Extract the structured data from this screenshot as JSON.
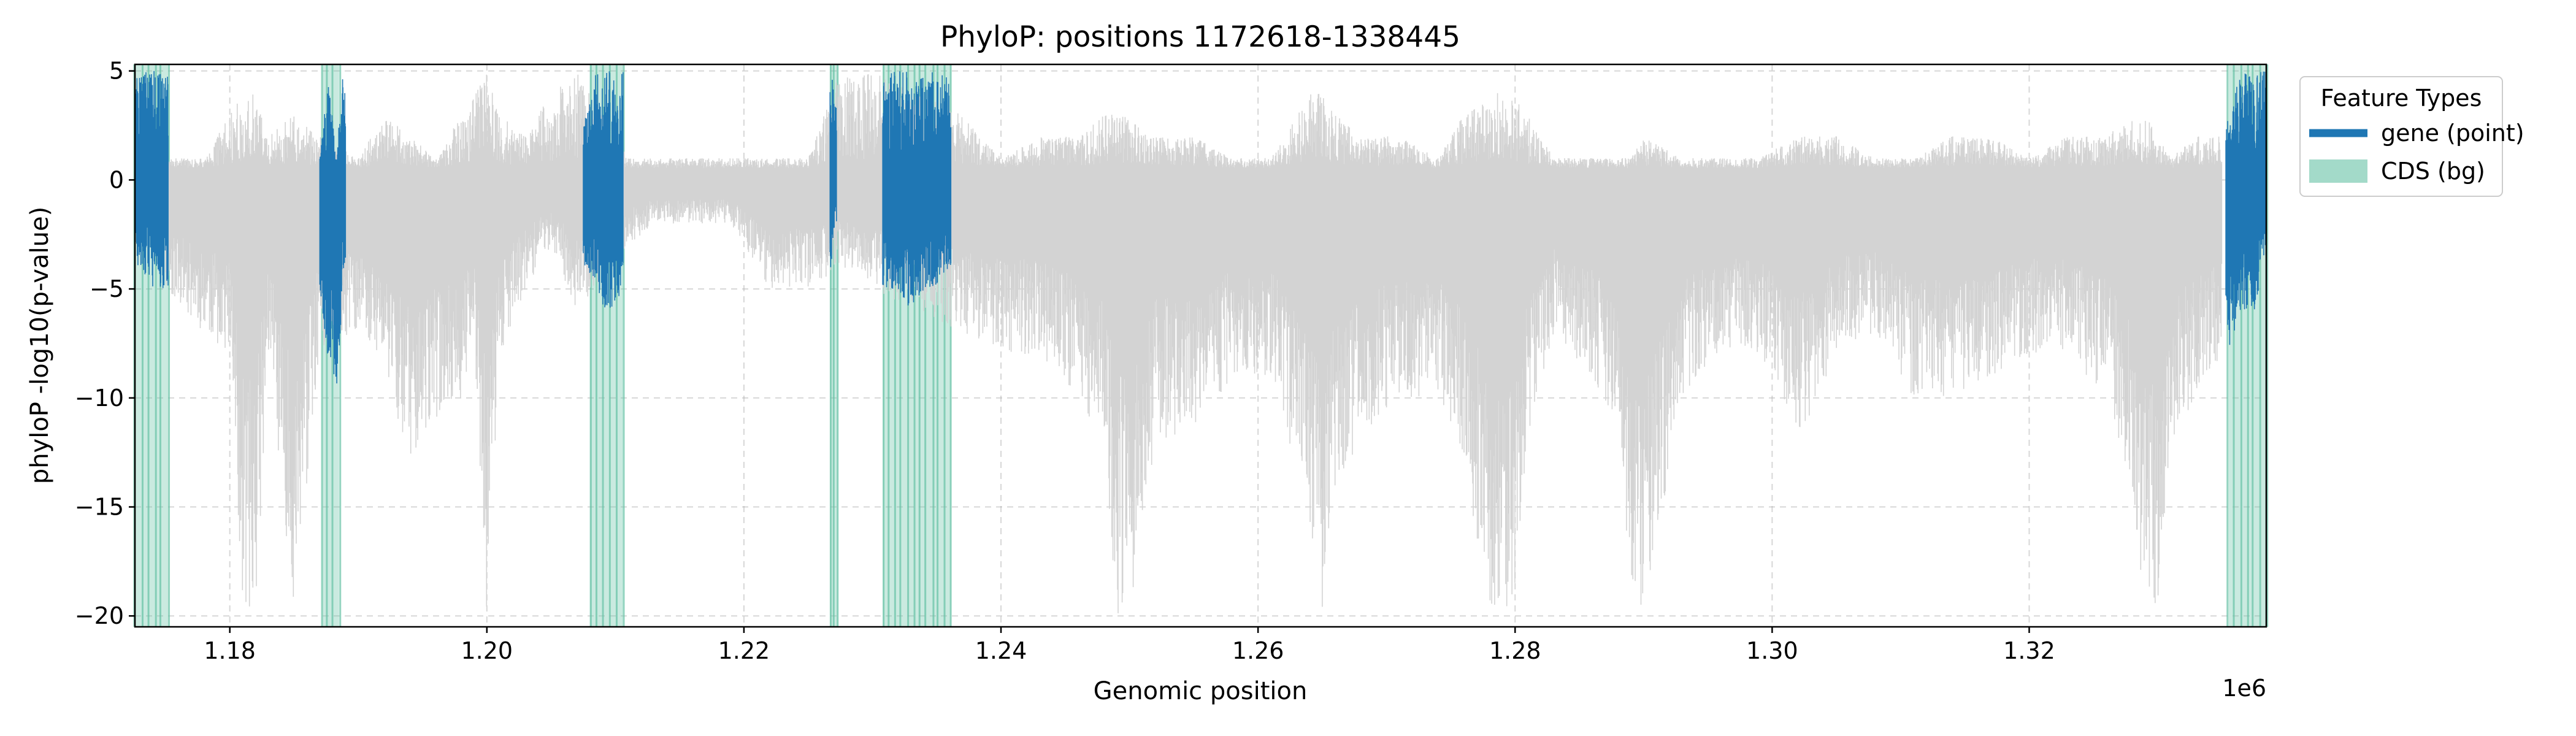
{
  "chart_data": {
    "type": "area",
    "title": "PhyloP: positions 1172618-1338445",
    "xlabel": "Genomic position",
    "ylabel": "phyloP -log10(p-value)",
    "x_offset_label": "1e6",
    "xlim": [
      1172618,
      1338445
    ],
    "ylim": [
      -20.5,
      5.3
    ],
    "x_ticks": [
      1180000,
      1200000,
      1220000,
      1240000,
      1260000,
      1280000,
      1300000,
      1320000
    ],
    "x_tick_labels": [
      "1.18",
      "1.20",
      "1.22",
      "1.24",
      "1.26",
      "1.28",
      "1.30",
      "1.32"
    ],
    "y_ticks": [
      5,
      0,
      -5,
      -10,
      -15,
      -20
    ],
    "y_tick_labels": [
      "5",
      "0",
      "−5",
      "−10",
      "−15",
      "−20"
    ],
    "grid": true,
    "legend": {
      "title": "Feature Types",
      "position": "outside-right",
      "entries": [
        {
          "label": "gene (point)",
          "color": "#1f77b4",
          "kind": "line"
        },
        {
          "label": "CDS (bg)",
          "color": "#66c2a5",
          "kind": "patch"
        }
      ]
    },
    "cds_regions": [
      [
        1172618,
        1175200
      ],
      [
        1187200,
        1188500
      ],
      [
        1208000,
        1210600
      ],
      [
        1226700,
        1227300
      ],
      [
        1230800,
        1236100
      ],
      [
        1335500,
        1338445
      ]
    ],
    "gene_regions": [
      [
        1172618,
        1175200
      ],
      [
        1187000,
        1189000
      ],
      [
        1207500,
        1210600
      ],
      [
        1226700,
        1227200
      ],
      [
        1230800,
        1236100
      ],
      [
        1335300,
        1338445
      ]
    ],
    "series": [
      {
        "name": "background",
        "color": "#d3d3d3",
        "x": [
          1175000,
          1178000,
          1180000,
          1181000,
          1182000,
          1183000,
          1185000,
          1187000,
          1190000,
          1192000,
          1194000,
          1196000,
          1198000,
          1199000,
          1200000,
          1201000,
          1203000,
          1205000,
          1207000,
          1211000,
          1213000,
          1216000,
          1219000,
          1222000,
          1225000,
          1227500,
          1230000,
          1237000,
          1240000,
          1243000,
          1246000,
          1248000,
          1249000,
          1250000,
          1252000,
          1255000,
          1258000,
          1261000,
          1264000,
          1265000,
          1266000,
          1268000,
          1271000,
          1274000,
          1276000,
          1278000,
          1279000,
          1280000,
          1281000,
          1283000,
          1286000,
          1288000,
          1289000,
          1290000,
          1293000,
          1296000,
          1299000,
          1302000,
          1305000,
          1308000,
          1311000,
          1314000,
          1317000,
          1320000,
          1323000,
          1326000,
          1328000,
          1329000,
          1330000,
          1331000,
          1333000,
          1335000
        ],
        "y_max": [
          1,
          1,
          3,
          4,
          4,
          2,
          3,
          2,
          1,
          3,
          2,
          1,
          3,
          4,
          5,
          3,
          2,
          4,
          5,
          1,
          1,
          1,
          1,
          1,
          1,
          5,
          5,
          3,
          1,
          2,
          2,
          3,
          3,
          3,
          2,
          2,
          1,
          1,
          4,
          4,
          3,
          2,
          2,
          1,
          3,
          4,
          4,
          4,
          3,
          1,
          1,
          1,
          1,
          2,
          1,
          1,
          1,
          2,
          2,
          1,
          1,
          2,
          2,
          1,
          2,
          2,
          3,
          3,
          2,
          1,
          2,
          2
        ],
        "y_min": [
          -5,
          -7,
          -8,
          -20,
          -20,
          -8,
          -20,
          -8,
          -7,
          -9,
          -13,
          -11,
          -10,
          -8,
          -20,
          -8,
          -5,
          -3,
          -6,
          -3,
          -2,
          -2,
          -2,
          -5,
          -5,
          -4,
          -5,
          -7,
          -8,
          -8,
          -10,
          -12,
          -20,
          -20,
          -12,
          -12,
          -9,
          -9,
          -16,
          -20,
          -14,
          -12,
          -10,
          -10,
          -13,
          -20,
          -20,
          -20,
          -12,
          -7,
          -9,
          -12,
          -20,
          -20,
          -10,
          -8,
          -8,
          -12,
          -8,
          -7,
          -10,
          -10,
          -9,
          -8,
          -8,
          -10,
          -14,
          -20,
          -20,
          -12,
          -10,
          -8
        ]
      },
      {
        "name": "gene (point)",
        "color": "#1f77b4",
        "x": [
          1173000,
          1174000,
          1175000,
          1187000,
          1187600,
          1188300,
          1188800,
          1207800,
          1208500,
          1209200,
          1210000,
          1210500,
          1226800,
          1227100,
          1231000,
          1232000,
          1233000,
          1234000,
          1235000,
          1236000,
          1335500,
          1336500,
          1337500,
          1338300
        ],
        "y_max": [
          5,
          5,
          5,
          1,
          5,
          1,
          5,
          3,
          5,
          5,
          5,
          5,
          5,
          4,
          5,
          5,
          5,
          5,
          5,
          5,
          3,
          5,
          5,
          5
        ],
        "y_min": [
          -4,
          -5,
          -5,
          -5,
          -8,
          -10,
          -5,
          -4,
          -5,
          -6,
          -6,
          -5,
          -4,
          -2,
          -5,
          -5,
          -6,
          -5,
          -5,
          -4,
          -8,
          -6,
          -6,
          -4
        ]
      }
    ]
  }
}
